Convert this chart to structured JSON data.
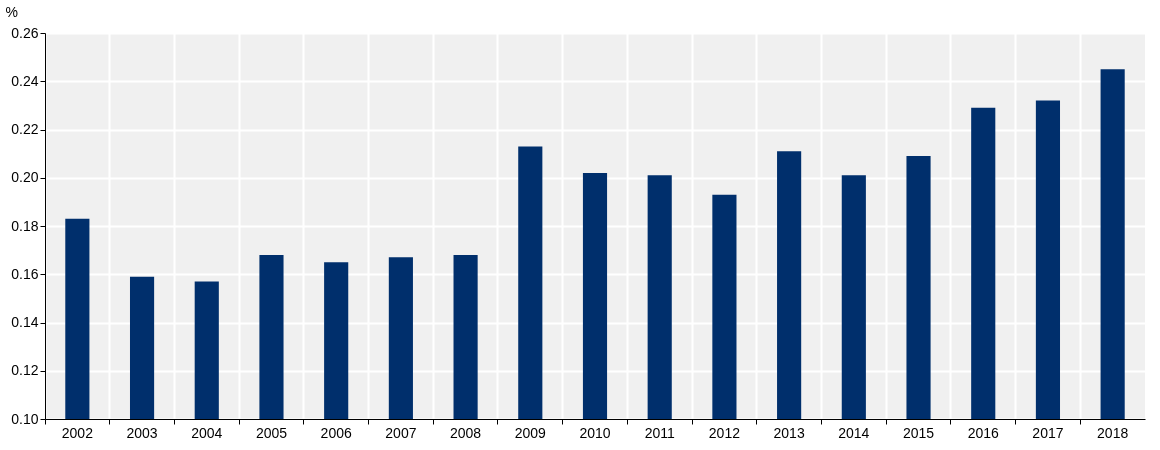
{
  "chart_data": {
    "type": "bar",
    "ylabel": "%",
    "categories": [
      "2002",
      "2003",
      "2004",
      "2005",
      "2006",
      "2007",
      "2008",
      "2009",
      "2010",
      "2011",
      "2012",
      "2013",
      "2014",
      "2015",
      "2016",
      "2017",
      "2018"
    ],
    "values": [
      0.183,
      0.159,
      0.157,
      0.168,
      0.165,
      0.167,
      0.168,
      0.213,
      0.202,
      0.201,
      0.193,
      0.211,
      0.201,
      0.209,
      0.229,
      0.232,
      0.245
    ],
    "color": "#002f6c",
    "ylim": [
      0.1,
      0.26
    ],
    "yticks": [
      {
        "value": 0.1,
        "label": "0.10"
      },
      {
        "value": 0.12,
        "label": "0.12"
      },
      {
        "value": 0.14,
        "label": "0.14"
      },
      {
        "value": 0.16,
        "label": "0.16"
      },
      {
        "value": 0.18,
        "label": "0.18"
      },
      {
        "value": 0.2,
        "label": "0.20"
      },
      {
        "value": 0.22,
        "label": "0.22"
      },
      {
        "value": 0.24,
        "label": "0.24"
      },
      {
        "value": 0.26,
        "label": "0.26"
      }
    ],
    "grid": true
  }
}
